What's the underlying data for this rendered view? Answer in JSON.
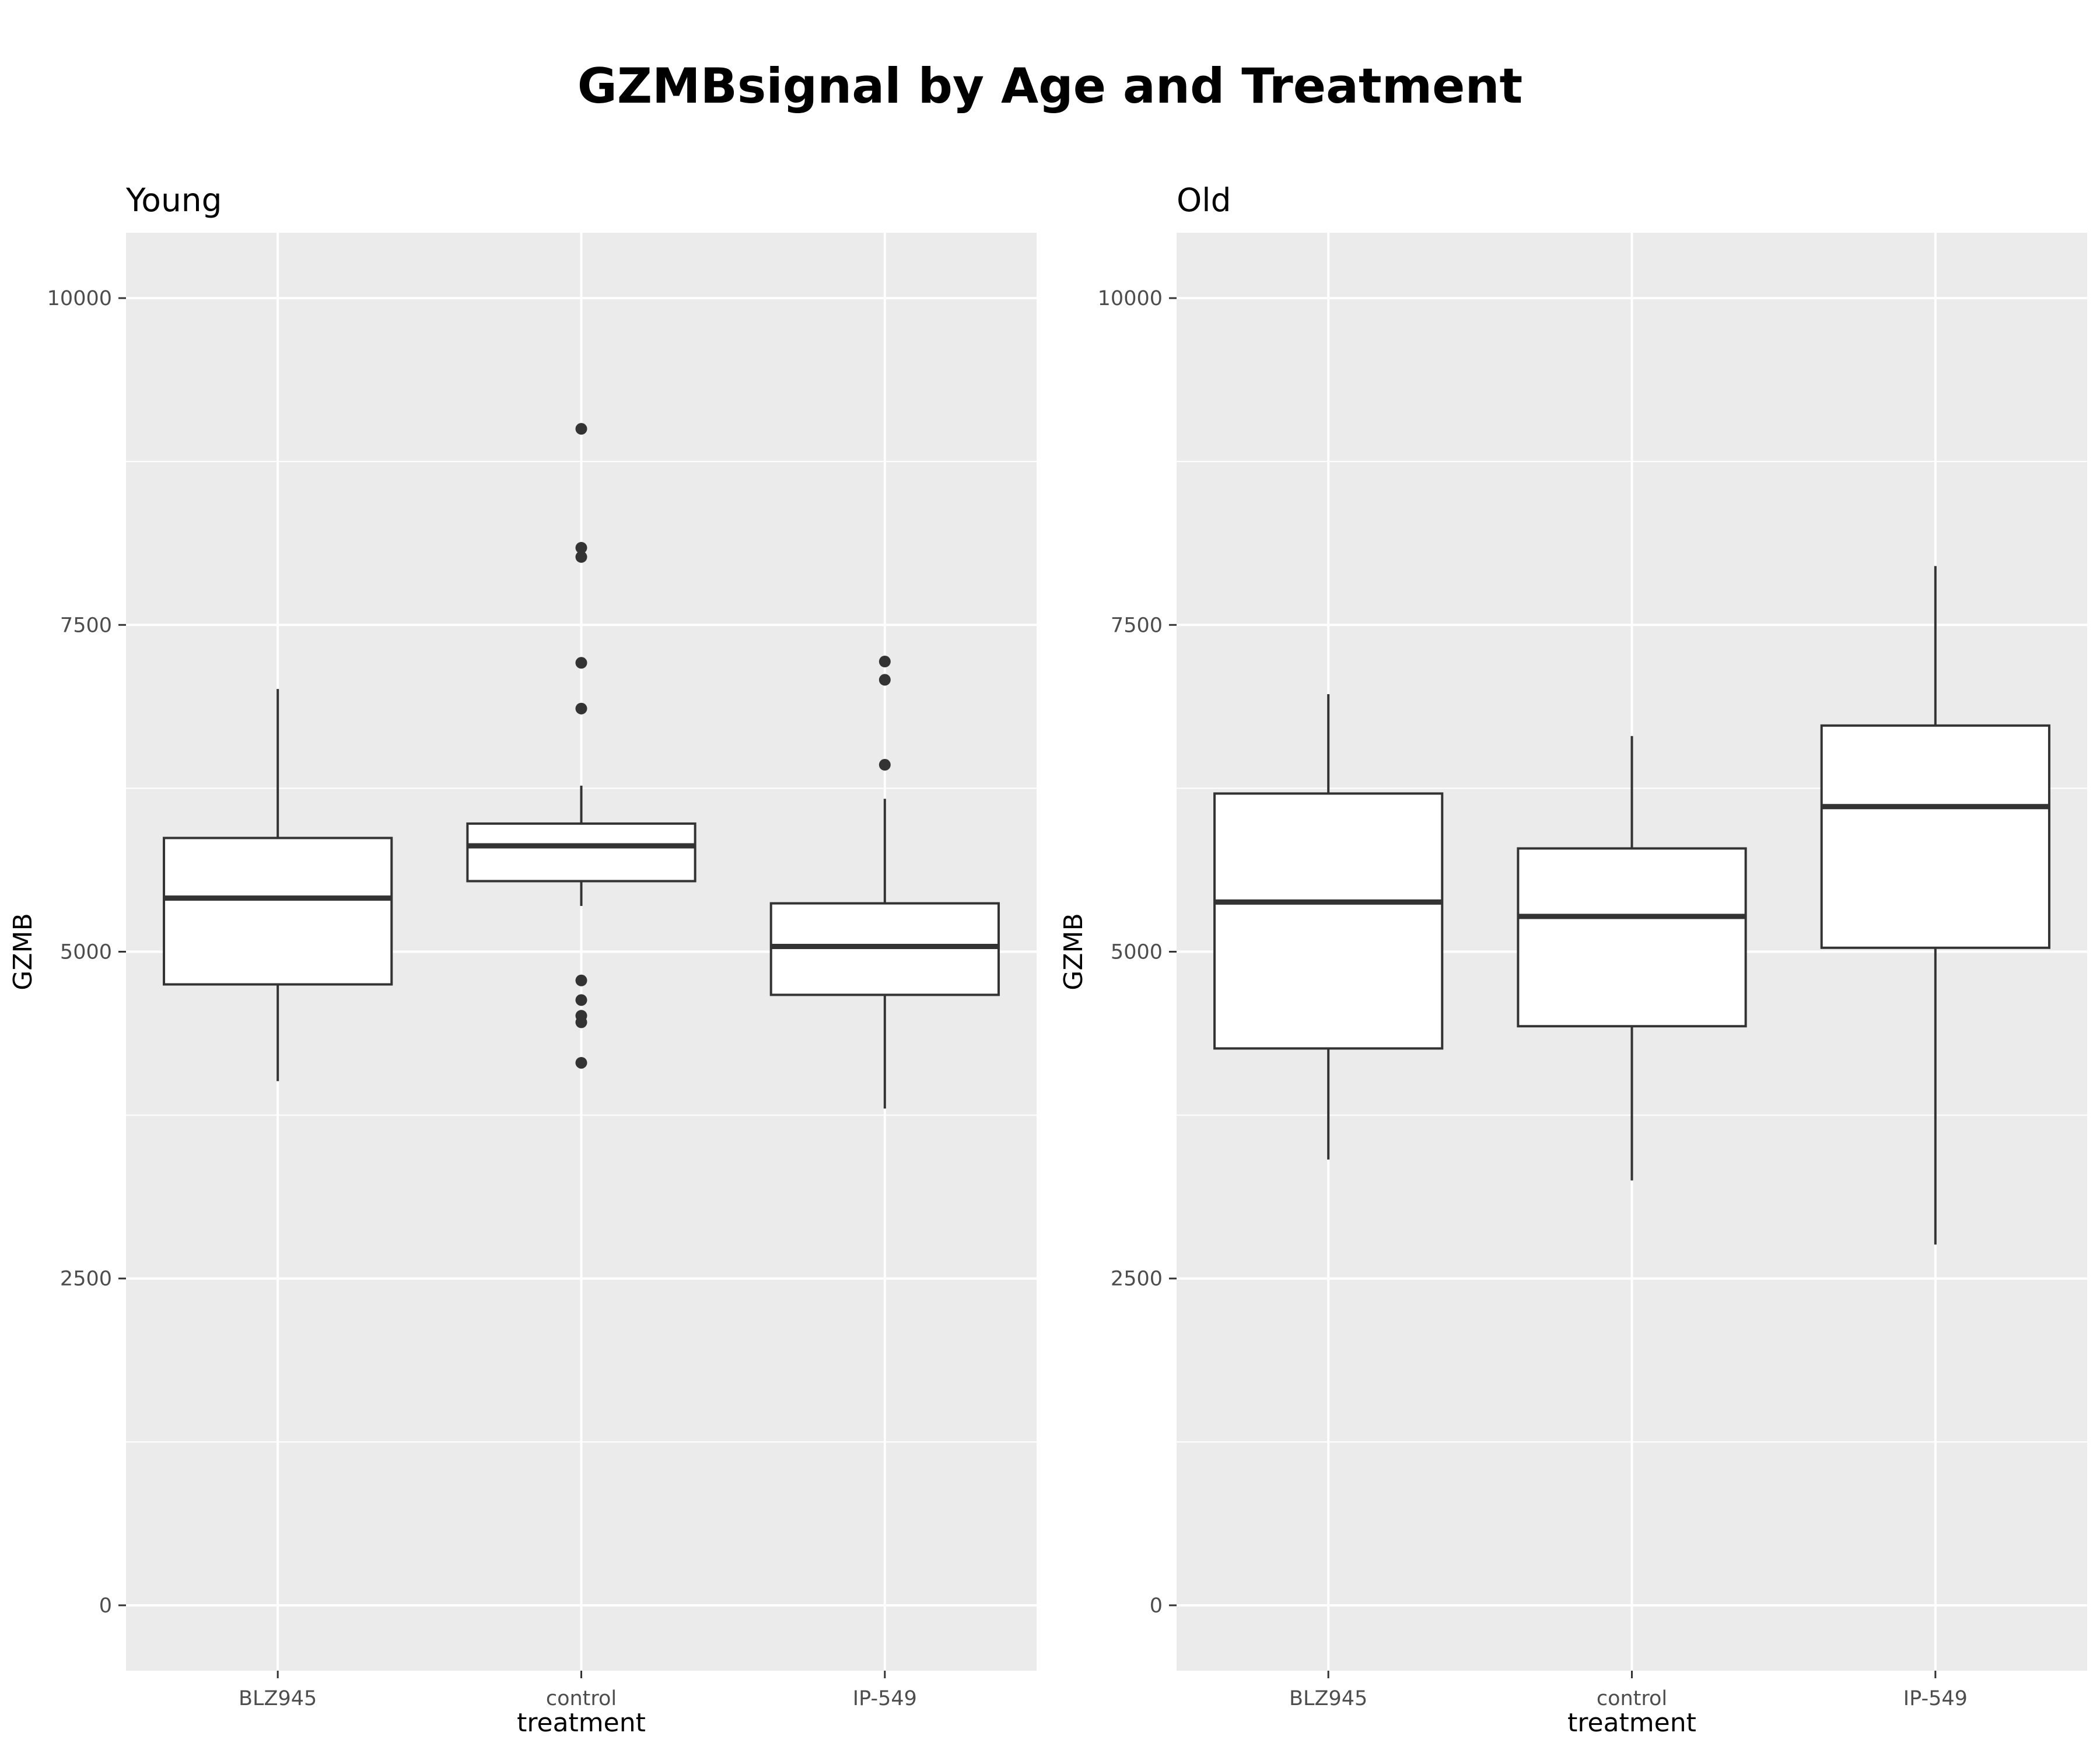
{
  "chart_data": {
    "title": "GZMBsignal by Age and Treatment",
    "type": "box",
    "ylim": [
      -500,
      10500
    ],
    "yticks": [
      0,
      2500,
      5000,
      7500,
      10000
    ],
    "grid": true,
    "legend": "none",
    "colors": {
      "panel_bg": "#ebebeb",
      "grid": "#ffffff",
      "box_fill": "#ffffff",
      "box_line": "#333333",
      "outlier": "#333333"
    },
    "panels": [
      {
        "strip": "Young",
        "xlabel": "treatment",
        "ylabel": "GZMB",
        "categories": [
          "BLZ945",
          "control",
          "IP-549"
        ],
        "boxes": [
          {
            "category": "BLZ945",
            "whisker_low": 4010,
            "q1": 4750,
            "median": 5410,
            "q3": 5870,
            "whisker_high": 7010,
            "outliers": []
          },
          {
            "category": "control",
            "whisker_low": 5350,
            "q1": 5540,
            "median": 5810,
            "q3": 5980,
            "whisker_high": 6270,
            "outliers": [
              9000,
              8090,
              8020,
              7210,
              6860,
              4780,
              4630,
              4510,
              4460,
              4150
            ]
          },
          {
            "category": "IP-549",
            "whisker_low": 3800,
            "q1": 4670,
            "median": 5040,
            "q3": 5370,
            "whisker_high": 6170,
            "outliers": [
              7220,
              7080,
              6430
            ]
          }
        ]
      },
      {
        "strip": "Old",
        "xlabel": "treatment",
        "ylabel": "GZMB",
        "categories": [
          "BLZ945",
          "control",
          "IP-549"
        ],
        "boxes": [
          {
            "category": "BLZ945",
            "whisker_low": 3410,
            "q1": 4260,
            "median": 5380,
            "q3": 6210,
            "whisker_high": 6970,
            "outliers": []
          },
          {
            "category": "control",
            "whisker_low": 3250,
            "q1": 4430,
            "median": 5270,
            "q3": 5790,
            "whisker_high": 6650,
            "outliers": []
          },
          {
            "category": "IP-549",
            "whisker_low": 2760,
            "q1": 5030,
            "median": 6110,
            "q3": 6730,
            "whisker_high": 7950,
            "outliers": []
          }
        ]
      }
    ]
  }
}
